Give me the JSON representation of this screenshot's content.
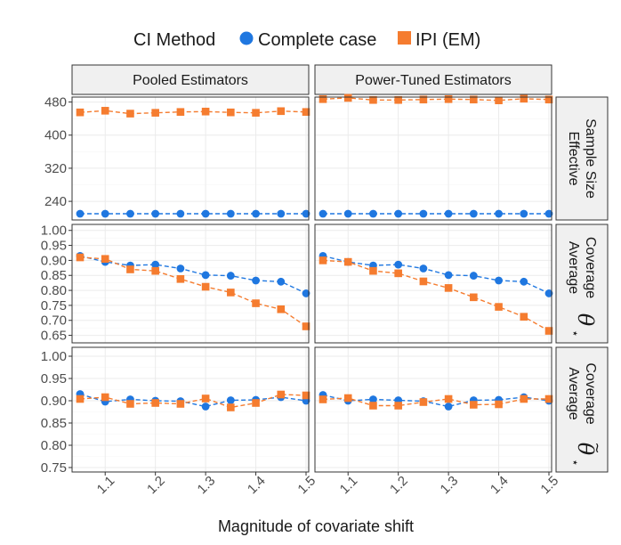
{
  "chart_data": {
    "type": "line",
    "xlabel": "Magnitude of covariate shift",
    "legend": {
      "title": "CI Method",
      "position": "top",
      "entries": [
        {
          "name": "Complete case",
          "color": "#1f77e0",
          "marker": "circle"
        },
        {
          "name": "IPI (EM)",
          "color": "#f57c2f",
          "marker": "square"
        }
      ]
    },
    "x": [
      1.05,
      1.1,
      1.15,
      1.2,
      1.25,
      1.3,
      1.35,
      1.4,
      1.45,
      1.5
    ],
    "x_ticks": [
      "1.1",
      "1.2",
      "1.3",
      "1.4",
      "1.5"
    ],
    "x_tick_values": [
      1.1,
      1.2,
      1.3,
      1.4,
      1.5
    ],
    "xlim": [
      1.05,
      1.5
    ],
    "columns": [
      "Pooled Estimators",
      "Power-Tuned Estimators"
    ],
    "rows": [
      {
        "label_lines": [
          "Effective",
          "Sample Size"
        ],
        "symbol": "",
        "ylim": [
          195,
          492
        ],
        "y_ticks": [
          240,
          320,
          400,
          480
        ],
        "y_tick_labels": [
          "240",
          "320",
          "400",
          "480"
        ],
        "panels": [
          {
            "series": [
              {
                "name": "Complete case",
                "values": [
                  210,
                  210,
                  210,
                  210,
                  210,
                  210,
                  210,
                  210,
                  210,
                  210
                ]
              },
              {
                "name": "IPI (EM)",
                "values": [
                  455,
                  459,
                  452,
                  454,
                  456,
                  457,
                  455,
                  454,
                  458,
                  456
                ]
              }
            ]
          },
          {
            "series": [
              {
                "name": "Complete case",
                "values": [
                  210,
                  210,
                  210,
                  210,
                  210,
                  210,
                  210,
                  210,
                  210,
                  210
                ]
              },
              {
                "name": "IPI (EM)",
                "values": [
                  487,
                  490,
                  485,
                  485,
                  486,
                  487,
                  486,
                  484,
                  488,
                  486
                ]
              }
            ]
          }
        ]
      },
      {
        "label_lines": [
          "Average",
          "Coverage"
        ],
        "symbol": "θ",
        "symbol_sub": "⋆",
        "symbol_accent": "",
        "ylim": [
          0.625,
          1.02
        ],
        "y_ticks": [
          0.65,
          0.7,
          0.75,
          0.8,
          0.85,
          0.9,
          0.95,
          1.0
        ],
        "y_tick_labels": [
          "0.65",
          "0.70",
          "0.75",
          "0.80",
          "0.85",
          "0.90",
          "0.95",
          "1.00"
        ],
        "panels": [
          {
            "series": [
              {
                "name": "Complete case",
                "values": [
                  0.915,
                  0.895,
                  0.883,
                  0.886,
                  0.873,
                  0.851,
                  0.849,
                  0.833,
                  0.829,
                  0.79
                ]
              },
              {
                "name": "IPI (EM)",
                "values": [
                  0.91,
                  0.905,
                  0.87,
                  0.865,
                  0.838,
                  0.812,
                  0.793,
                  0.757,
                  0.737,
                  0.68
                ]
              }
            ]
          },
          {
            "series": [
              {
                "name": "Complete case",
                "values": [
                  0.915,
                  0.895,
                  0.883,
                  0.886,
                  0.873,
                  0.851,
                  0.849,
                  0.833,
                  0.829,
                  0.79
                ]
              },
              {
                "name": "IPI (EM)",
                "values": [
                  0.9,
                  0.895,
                  0.865,
                  0.857,
                  0.83,
                  0.808,
                  0.777,
                  0.745,
                  0.712,
                  0.665
                ]
              }
            ]
          }
        ]
      },
      {
        "label_lines": [
          "Average",
          "Coverage"
        ],
        "symbol": "θ",
        "symbol_sub": "⋆",
        "symbol_accent": "~",
        "ylim": [
          0.74,
          1.02
        ],
        "y_ticks": [
          0.75,
          0.8,
          0.85,
          0.9,
          0.95,
          1.0
        ],
        "y_tick_labels": [
          "0.75",
          "0.80",
          "0.85",
          "0.90",
          "0.95",
          "1.00"
        ],
        "panels": [
          {
            "series": [
              {
                "name": "Complete case",
                "values": [
                  0.915,
                  0.898,
                  0.903,
                  0.9,
                  0.899,
                  0.887,
                  0.901,
                  0.902,
                  0.908,
                  0.9
                ]
              },
              {
                "name": "IPI (EM)",
                "values": [
                  0.904,
                  0.908,
                  0.893,
                  0.895,
                  0.893,
                  0.905,
                  0.885,
                  0.895,
                  0.914,
                  0.912
                ]
              }
            ]
          },
          {
            "series": [
              {
                "name": "Complete case",
                "values": [
                  0.913,
                  0.9,
                  0.903,
                  0.901,
                  0.899,
                  0.887,
                  0.901,
                  0.902,
                  0.908,
                  0.9
                ]
              },
              {
                "name": "IPI (EM)",
                "values": [
                  0.903,
                  0.906,
                  0.889,
                  0.889,
                  0.897,
                  0.904,
                  0.891,
                  0.892,
                  0.904,
                  0.904
                ]
              }
            ]
          }
        ]
      }
    ]
  }
}
